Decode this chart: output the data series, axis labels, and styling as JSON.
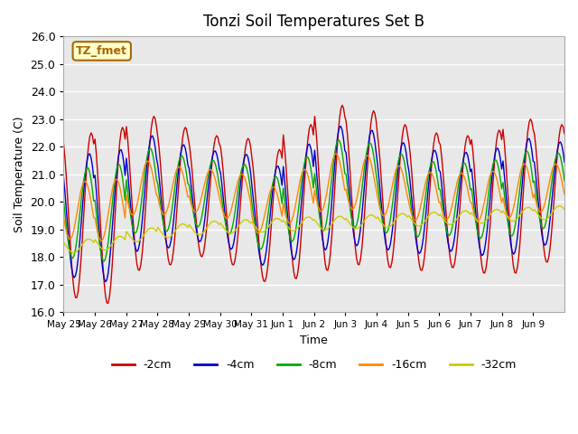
{
  "title": "Tonzi Soil Temperatures Set B",
  "xlabel": "Time",
  "ylabel": "Soil Temperature (C)",
  "ylim": [
    16.0,
    26.0
  ],
  "yticks": [
    16.0,
    17.0,
    18.0,
    19.0,
    20.0,
    21.0,
    22.0,
    23.0,
    24.0,
    25.0,
    26.0
  ],
  "colors": {
    "-2cm": "#cc0000",
    "-4cm": "#0000cc",
    "-8cm": "#00aa00",
    "-16cm": "#ff8800",
    "-32cm": "#cccc00"
  },
  "legend_labels": [
    "-2cm",
    "-4cm",
    "-8cm",
    "-16cm",
    "-32cm"
  ],
  "annotation_text": "TZ_fmet",
  "annotation_color": "#aa6600",
  "background_color": "#e8e8e8",
  "grid_color": "#ffffff",
  "xtick_labels": [
    "May 25",
    "May 26",
    "May 27",
    "May 28",
    "May 29",
    "May 30",
    "May 31",
    "Jun 1",
    "Jun 2",
    "Jun 3",
    "Jun 4",
    "Jun 5",
    "Jun 6",
    "Jun 7",
    "Jun 8",
    "Jun 9"
  ],
  "n_days": 16,
  "pts_per_day": 24,
  "base_trend": [
    19.5,
    19.6,
    19.7,
    19.8,
    19.9,
    20.0,
    20.0,
    20.1,
    20.2,
    20.3,
    20.3,
    20.3,
    20.4,
    20.4,
    20.4,
    20.4,
    20.4,
    20.4,
    20.5,
    20.5,
    20.5,
    20.5,
    20.5,
    20.5,
    20.5,
    20.5,
    20.5,
    20.5,
    20.5,
    20.5,
    20.5,
    20.5,
    20.5,
    20.5,
    20.5,
    20.5,
    20.5,
    20.5,
    20.5,
    20.5,
    20.5,
    20.5,
    20.5,
    20.5,
    20.5,
    20.5,
    20.5,
    20.5,
    20.5,
    20.5,
    20.5,
    20.5,
    20.5,
    20.5,
    20.5,
    20.5,
    20.5,
    20.5,
    20.5,
    20.5,
    20.5,
    20.5,
    20.5,
    20.5,
    20.5,
    20.5,
    20.5,
    20.5,
    20.5,
    20.5,
    20.5,
    20.5,
    20.5,
    20.5,
    20.5,
    20.5,
    20.5,
    20.5,
    20.5,
    20.5,
    20.5,
    20.5,
    20.5,
    20.5,
    20.5,
    20.5,
    20.5,
    20.5,
    20.5,
    20.5,
    20.5,
    20.5,
    20.5,
    20.5,
    20.5,
    20.5,
    20.5,
    20.5,
    20.5,
    20.5,
    20.5,
    20.5,
    20.5,
    20.5,
    20.5,
    20.5,
    20.5,
    20.5,
    20.5,
    20.5,
    20.5,
    20.5,
    20.5,
    20.5,
    20.5,
    20.5,
    20.5,
    20.5,
    20.5,
    20.5,
    20.5,
    20.5,
    20.5,
    20.5,
    20.5,
    20.5,
    20.5,
    20.5,
    20.5,
    20.5,
    20.5,
    20.5,
    20.5,
    20.5,
    20.5,
    20.5,
    20.5,
    20.5,
    20.5,
    20.5,
    20.5,
    20.5,
    20.5,
    20.5,
    20.5,
    20.5,
    20.5,
    20.5,
    20.5,
    20.5,
    20.5,
    20.5,
    20.5,
    20.5,
    20.5,
    20.5,
    20.5,
    20.5,
    20.5,
    20.5,
    20.5,
    20.5,
    20.5,
    20.5,
    20.5,
    20.5,
    20.5,
    20.5,
    20.5,
    20.5,
    20.5,
    20.5,
    20.5,
    20.5,
    20.5,
    20.5,
    20.5,
    20.5,
    20.5,
    20.5,
    20.5,
    20.5,
    20.5,
    20.5,
    20.5,
    20.5,
    20.5,
    20.5,
    20.5,
    20.5,
    20.5,
    20.5,
    20.5,
    20.5,
    20.5,
    20.5,
    20.5,
    20.5,
    20.5,
    20.5,
    20.5,
    20.5,
    20.5,
    20.5,
    20.5,
    20.5,
    20.5,
    20.5,
    20.5,
    20.5,
    20.5,
    20.5,
    20.5,
    20.5,
    20.5,
    20.5,
    20.5,
    20.5,
    20.5,
    20.5,
    20.5,
    20.5,
    20.5,
    20.5,
    20.5,
    20.5,
    20.5,
    20.5,
    20.5,
    20.5,
    20.5,
    20.5,
    20.5,
    20.5,
    20.5,
    20.5,
    20.5,
    20.5,
    20.5,
    20.5,
    20.5,
    20.5,
    20.5,
    20.5,
    20.5,
    20.5,
    20.5,
    20.5,
    20.5,
    20.5,
    20.5,
    20.5,
    20.5,
    20.5,
    20.5,
    20.5,
    20.5,
    20.5,
    20.5,
    20.5,
    20.5,
    20.5,
    20.5,
    20.5,
    20.5,
    20.5,
    20.5,
    20.5,
    20.5,
    20.5,
    20.5,
    20.5,
    20.5,
    20.5,
    20.5,
    20.5,
    20.5,
    20.5,
    20.5,
    20.5,
    20.5,
    20.5,
    20.5,
    20.5,
    20.5,
    20.5,
    20.5,
    20.5,
    20.5,
    20.5,
    20.5,
    20.5,
    20.5,
    20.5,
    20.5,
    20.5,
    20.5,
    20.5,
    20.5,
    20.5,
    20.5,
    20.5,
    20.5,
    20.5,
    20.5,
    20.5,
    20.5,
    20.5,
    20.5,
    20.5,
    20.5,
    20.5,
    20.5,
    20.5,
    20.5,
    20.5,
    20.5,
    20.5,
    20.5,
    20.5,
    20.5,
    20.5,
    20.5,
    20.5,
    20.5,
    20.5,
    20.5,
    20.5,
    20.5,
    20.5,
    20.5,
    20.5,
    20.5,
    20.5,
    20.5,
    20.5,
    20.5,
    20.5,
    20.5,
    20.5,
    20.5,
    20.5,
    20.5,
    20.5,
    20.5,
    20.5,
    20.5,
    20.5,
    20.5,
    20.5,
    20.5,
    20.5,
    20.5,
    20.5,
    20.5,
    20.5,
    20.5,
    20.5,
    20.5,
    20.5,
    20.5,
    20.5,
    20.5,
    20.5,
    20.5,
    20.5,
    20.5,
    20.5,
    20.5,
    20.5,
    20.5,
    20.5,
    20.5,
    20.5,
    20.5,
    20.5,
    20.5,
    20.5,
    20.5,
    20.5,
    20.5,
    20.5,
    20.5,
    20.5
  ]
}
